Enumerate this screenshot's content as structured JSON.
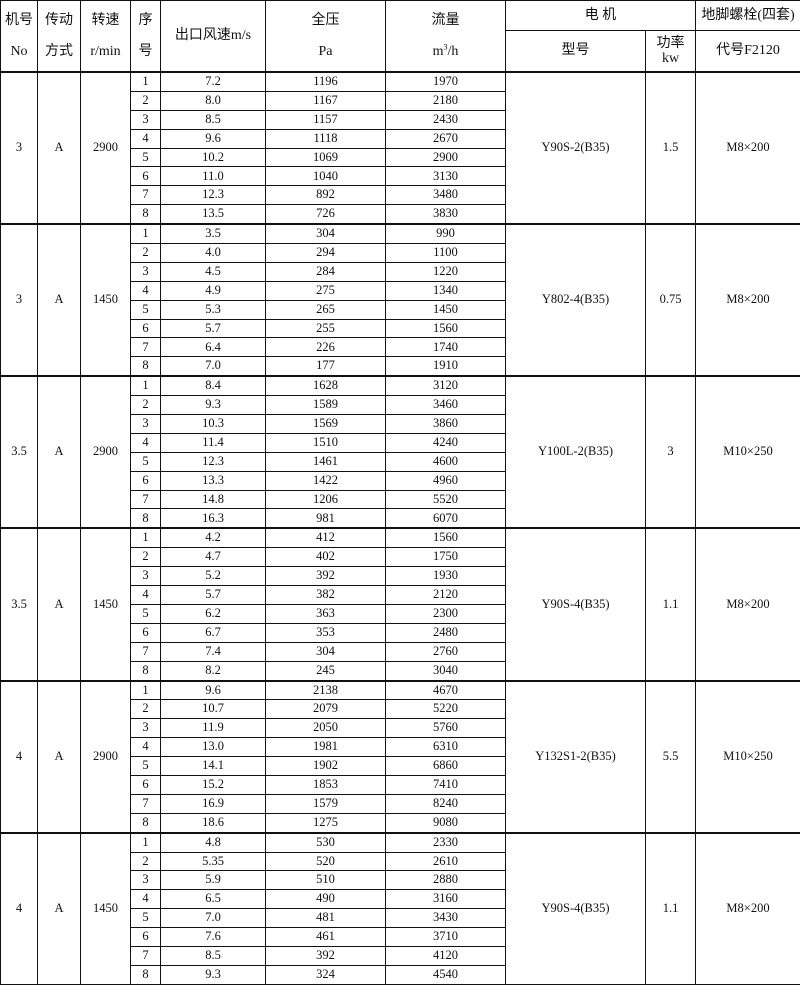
{
  "header": {
    "machine_no": "机号",
    "machine_no_sub": "No",
    "drive": "传动",
    "drive_sub": "方式",
    "speed": "转速",
    "speed_sub": "r/min",
    "seq": "序",
    "seq_sub": "号",
    "velocity": "出口风速m/s",
    "pressure": "全压",
    "pressure_sub": "Pa",
    "flow": "流量",
    "flow_unit_m": "m",
    "flow_unit_exp": "3",
    "flow_unit_h": "/h",
    "motor": "电 机",
    "motor_model": "型号",
    "motor_power": "功率",
    "motor_power_sub": "kw",
    "bolt": "地脚螺栓(四套)",
    "bolt_code": "代号F2120"
  },
  "groups": [
    {
      "no": "3",
      "drive": "A",
      "speed": "2900",
      "model": "Y90S-2(B35)",
      "power": "1.5",
      "bolt": "M8×200",
      "rows": [
        [
          "1",
          "7.2",
          "1196",
          "1970"
        ],
        [
          "2",
          "8.0",
          "1167",
          "2180"
        ],
        [
          "3",
          "8.5",
          "1157",
          "2430"
        ],
        [
          "4",
          "9.6",
          "1118",
          "2670"
        ],
        [
          "5",
          "10.2",
          "1069",
          "2900"
        ],
        [
          "6",
          "11.0",
          "1040",
          "3130"
        ],
        [
          "7",
          "12.3",
          "892",
          "3480"
        ],
        [
          "8",
          "13.5",
          "726",
          "3830"
        ]
      ]
    },
    {
      "no": "3",
      "drive": "A",
      "speed": "1450",
      "model": "Y802-4(B35)",
      "power": "0.75",
      "bolt": "M8×200",
      "rows": [
        [
          "1",
          "3.5",
          "304",
          "990"
        ],
        [
          "2",
          "4.0",
          "294",
          "1100"
        ],
        [
          "3",
          "4.5",
          "284",
          "1220"
        ],
        [
          "4",
          "4.9",
          "275",
          "1340"
        ],
        [
          "5",
          "5.3",
          "265",
          "1450"
        ],
        [
          "6",
          "5.7",
          "255",
          "1560"
        ],
        [
          "7",
          "6.4",
          "226",
          "1740"
        ],
        [
          "8",
          "7.0",
          "177",
          "1910"
        ]
      ]
    },
    {
      "no": "3.5",
      "drive": "A",
      "speed": "2900",
      "model": "Y100L-2(B35)",
      "power": "3",
      "bolt": "M10×250",
      "rows": [
        [
          "1",
          "8.4",
          "1628",
          "3120"
        ],
        [
          "2",
          "9.3",
          "1589",
          "3460"
        ],
        [
          "3",
          "10.3",
          "1569",
          "3860"
        ],
        [
          "4",
          "11.4",
          "1510",
          "4240"
        ],
        [
          "5",
          "12.3",
          "1461",
          "4600"
        ],
        [
          "6",
          "13.3",
          "1422",
          "4960"
        ],
        [
          "7",
          "14.8",
          "1206",
          "5520"
        ],
        [
          "8",
          "16.3",
          "981",
          "6070"
        ]
      ]
    },
    {
      "no": "3.5",
      "drive": "A",
      "speed": "1450",
      "model": "Y90S-4(B35)",
      "power": "1.1",
      "bolt": "M8×200",
      "rows": [
        [
          "1",
          "4.2",
          "412",
          "1560"
        ],
        [
          "2",
          "4.7",
          "402",
          "1750"
        ],
        [
          "3",
          "5.2",
          "392",
          "1930"
        ],
        [
          "4",
          "5.7",
          "382",
          "2120"
        ],
        [
          "5",
          "6.2",
          "363",
          "2300"
        ],
        [
          "6",
          "6.7",
          "353",
          "2480"
        ],
        [
          "7",
          "7.4",
          "304",
          "2760"
        ],
        [
          "8",
          "8.2",
          "245",
          "3040"
        ]
      ]
    },
    {
      "no": "4",
      "drive": "A",
      "speed": "2900",
      "model": "Y132S1-2(B35)",
      "power": "5.5",
      "bolt": "M10×250",
      "rows": [
        [
          "1",
          "9.6",
          "2138",
          "4670"
        ],
        [
          "2",
          "10.7",
          "2079",
          "5220"
        ],
        [
          "3",
          "11.9",
          "2050",
          "5760"
        ],
        [
          "4",
          "13.0",
          "1981",
          "6310"
        ],
        [
          "5",
          "14.1",
          "1902",
          "6860"
        ],
        [
          "6",
          "15.2",
          "1853",
          "7410"
        ],
        [
          "7",
          "16.9",
          "1579",
          "8240"
        ],
        [
          "8",
          "18.6",
          "1275",
          "9080"
        ]
      ]
    },
    {
      "no": "4",
      "drive": "A",
      "speed": "1450",
      "model": "Y90S-4(B35)",
      "power": "1.1",
      "bolt": "M8×200",
      "rows": [
        [
          "1",
          "4.8",
          "530",
          "2330"
        ],
        [
          "2",
          "5.35",
          "520",
          "2610"
        ],
        [
          "3",
          "5.9",
          "510",
          "2880"
        ],
        [
          "4",
          "6.5",
          "490",
          "3160"
        ],
        [
          "5",
          "7.0",
          "481",
          "3430"
        ],
        [
          "6",
          "7.6",
          "461",
          "3710"
        ],
        [
          "7",
          "8.5",
          "392",
          "4120"
        ],
        [
          "8",
          "9.3",
          "324",
          "4540"
        ]
      ]
    }
  ]
}
